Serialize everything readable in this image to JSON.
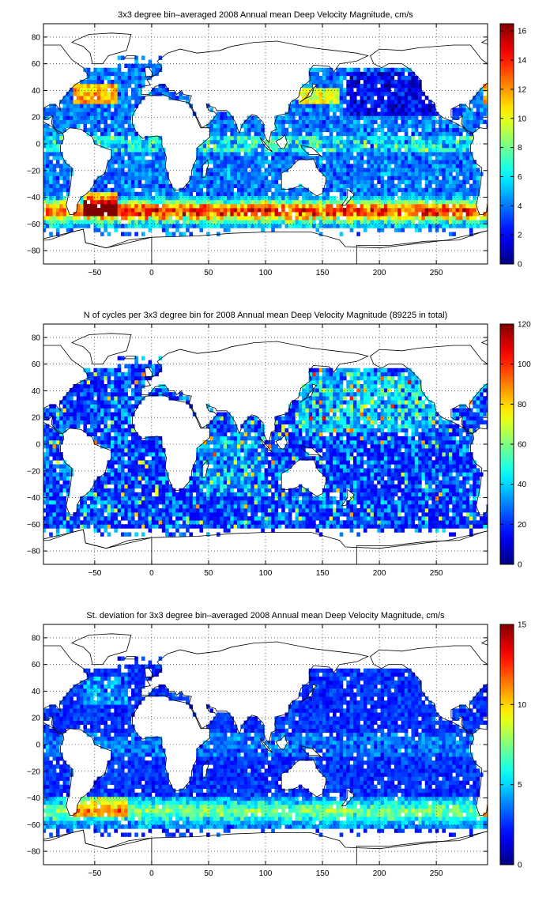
{
  "chart_data": [
    {
      "type": "heatmap",
      "title": "3x3 degree bin–averaged 2008 Annual mean Deep Velocity Magnitude, cm/s",
      "xlim": [
        -95,
        295
      ],
      "ylim": [
        -90,
        90
      ],
      "x_ticks": [
        -50,
        0,
        50,
        100,
        150,
        200,
        250
      ],
      "y_ticks": [
        80,
        60,
        40,
        20,
        0,
        -20,
        -40,
        -60,
        -80
      ],
      "colorbar": {
        "min": 0,
        "max": 16.5,
        "ticks": [
          0,
          2,
          4,
          6,
          8,
          10,
          12,
          14,
          16
        ]
      },
      "colormap": "jet",
      "grid": true,
      "field": "deep velocity magnitude",
      "bin_size_deg": 3
    },
    {
      "type": "heatmap",
      "title": "N of cycles per 3x3 degree bin for 2008 Annual mean Deep Velocity Magnitude (89225 in total)",
      "xlim": [
        -95,
        295
      ],
      "ylim": [
        -90,
        90
      ],
      "x_ticks": [
        -50,
        0,
        50,
        100,
        150,
        200,
        250
      ],
      "y_ticks": [
        80,
        60,
        40,
        20,
        0,
        -20,
        -40,
        -60,
        -80
      ],
      "colorbar": {
        "min": 0,
        "max": 120,
        "ticks": [
          0,
          20,
          40,
          60,
          80,
          100,
          120
        ]
      },
      "colormap": "jet",
      "grid": true,
      "field": "cycle count",
      "bin_size_deg": 3
    },
    {
      "type": "heatmap",
      "title": "St. deviation for 3x3 degree bin–averaged 2008 Annual mean Deep Velocity Magnitude, cm/s",
      "xlim": [
        -95,
        295
      ],
      "ylim": [
        -90,
        90
      ],
      "x_ticks": [
        -50,
        0,
        50,
        100,
        150,
        200,
        250
      ],
      "y_ticks": [
        80,
        60,
        40,
        20,
        0,
        -20,
        -40,
        -60,
        -80
      ],
      "colorbar": {
        "min": 0,
        "max": 15,
        "ticks": [
          0,
          5,
          10,
          15
        ]
      },
      "colormap": "jet",
      "grid": true,
      "field": "standard deviation",
      "bin_size_deg": 3
    }
  ]
}
